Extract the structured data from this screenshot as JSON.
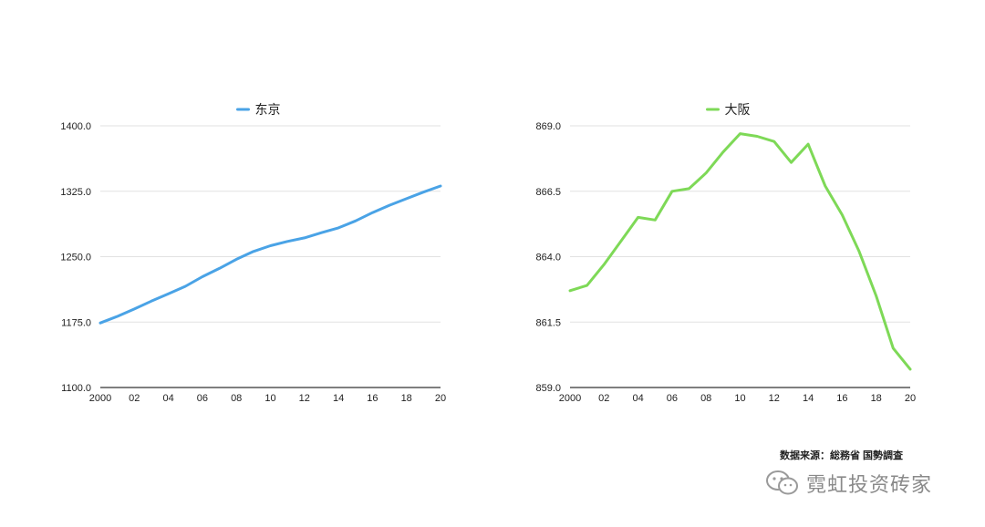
{
  "chart_data": [
    {
      "type": "line",
      "legend": "东京",
      "color": "#4aa3e6",
      "x": [
        2000,
        2001,
        2002,
        2003,
        2004,
        2005,
        2006,
        2007,
        2008,
        2009,
        2010,
        2011,
        2012,
        2013,
        2014,
        2015,
        2016,
        2017,
        2018,
        2019,
        2020
      ],
      "values": [
        1174.0,
        1181.5,
        1190.0,
        1199.0,
        1207.5,
        1216.0,
        1227.0,
        1236.5,
        1247.0,
        1256.0,
        1262.5,
        1267.5,
        1271.5,
        1277.5,
        1283.0,
        1291.0,
        1300.5,
        1309.0,
        1316.5,
        1324.0,
        1331.0
      ],
      "xticks": [
        "2000",
        "02",
        "04",
        "06",
        "08",
        "10",
        "12",
        "14",
        "16",
        "18",
        "20"
      ],
      "yticks": [
        "1100.0",
        "1175.0",
        "1250.0",
        "1325.0",
        "1400.0"
      ],
      "ylim": [
        1100,
        1400
      ],
      "grid": true
    },
    {
      "type": "line",
      "legend": "大阪",
      "color": "#7ed957",
      "x": [
        2000,
        2001,
        2002,
        2003,
        2004,
        2005,
        2006,
        2007,
        2008,
        2009,
        2010,
        2011,
        2012,
        2013,
        2014,
        2015,
        2016,
        2017,
        2018,
        2019,
        2020
      ],
      "values": [
        862.7,
        862.9,
        863.7,
        864.6,
        865.5,
        865.4,
        866.5,
        866.6,
        867.2,
        868.0,
        868.7,
        868.6,
        868.4,
        867.6,
        868.3,
        866.7,
        865.6,
        864.2,
        862.5,
        860.5,
        859.7
      ],
      "xticks": [
        "2000",
        "02",
        "04",
        "06",
        "08",
        "10",
        "12",
        "14",
        "16",
        "18",
        "20"
      ],
      "yticks": [
        "859.0",
        "861.5",
        "864.0",
        "866.5",
        "869.0"
      ],
      "ylim": [
        859.0,
        869.0
      ],
      "grid": true
    }
  ],
  "source": "数据来源：総務省 国勢調査",
  "watermark": "霓虹投资砖家",
  "icons": {
    "watermark_icon": "wechat-icon"
  }
}
